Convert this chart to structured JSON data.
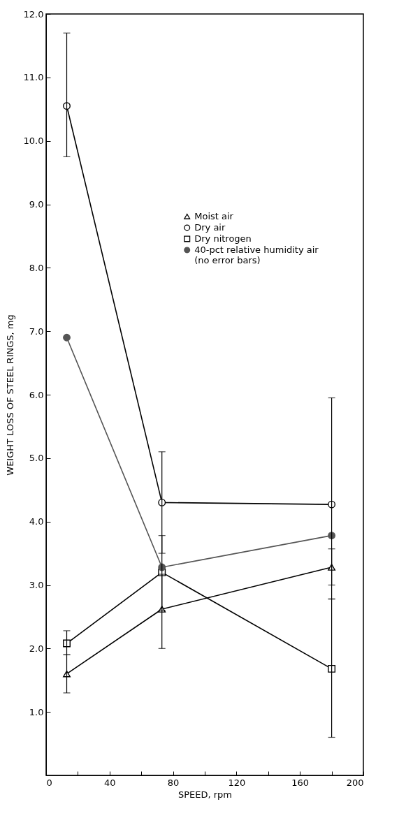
{
  "chart_data": {
    "type": "line",
    "xlabel": "SPEED, rpm",
    "ylabel": "WEIGHT LOSS OF STEEL RINGS, mg",
    "x": [
      13,
      73,
      180
    ],
    "xlim": [
      0,
      200
    ],
    "xticks": [
      0,
      {
        "value": 20,
        "label": null
      },
      40,
      {
        "value": 60,
        "label": null
      },
      80,
      {
        "value": 100,
        "label": null
      },
      120,
      {
        "value": 140,
        "label": null
      },
      160,
      {
        "value": 180,
        "label": null
      },
      200
    ],
    "ylim": [
      0,
      12
    ],
    "yticks": [
      {
        "value": 1,
        "label": "1.0"
      },
      {
        "value": 2,
        "label": "2.0"
      },
      {
        "value": 3,
        "label": "3.0"
      },
      {
        "value": 4,
        "label": "4.0"
      },
      {
        "value": 5,
        "label": "5.0"
      },
      {
        "value": 6,
        "label": "6.0"
      },
      {
        "value": 7,
        "label": "7.0"
      },
      {
        "value": 8,
        "label": "8.0"
      },
      {
        "value": 9,
        "label": "9.0"
      },
      {
        "value": 10,
        "label": "10.0"
      },
      {
        "value": 11,
        "label": "11.0"
      },
      {
        "value": 12,
        "label": "12.0"
      }
    ],
    "series": [
      {
        "name": "Moist air",
        "color": "#000000",
        "marker": "triangle",
        "values": [
          1.6,
          2.62,
          3.28
        ],
        "errors": [
          [
            1.3,
            1.9
          ],
          [
            2.0,
            3.17
          ],
          [
            3.0,
            3.57
          ]
        ]
      },
      {
        "name": "Dry air",
        "color": "#000000",
        "marker": "circle",
        "values": [
          10.55,
          4.3,
          4.27
        ],
        "errors": [
          [
            9.75,
            11.7
          ],
          [
            3.5,
            5.1
          ],
          [
            2.78,
            5.95
          ]
        ]
      },
      {
        "name": "Dry nitrogen",
        "color": "#000000",
        "marker": "square",
        "values": [
          2.08,
          3.2,
          1.68
        ],
        "errors": [
          [
            1.9,
            2.28
          ],
          [
            2.6,
            3.78
          ],
          [
            0.6,
            2.78
          ]
        ]
      },
      {
        "name": "40-pct relative humidity air (no error bars)",
        "color": "#555555",
        "marker": "circle",
        "values": [
          6.9,
          3.28,
          3.78
        ]
      }
    ],
    "legend": "top right",
    "grid": false,
    "line_style": "solid"
  }
}
